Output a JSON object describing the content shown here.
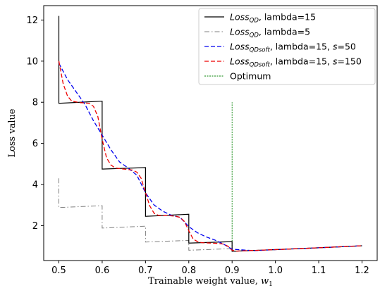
{
  "chart_data": {
    "type": "line",
    "xlabel_main": "Trainable weight value, ",
    "xlabel_var": "w",
    "xlabel_sub": "1",
    "ylabel": "Loss value",
    "xlim": [
      0.465,
      1.235
    ],
    "ylim": [
      0.3,
      12.7
    ],
    "xticks": [
      "0.5",
      "0.6",
      "0.7",
      "0.8",
      "0.9",
      "1.0",
      "1.1",
      "1.2"
    ],
    "xtick_values": [
      0.5,
      0.6,
      0.7,
      0.8,
      0.9,
      1.0,
      1.1,
      1.2
    ],
    "yticks": [
      "2",
      "4",
      "6",
      "8",
      "10",
      "12"
    ],
    "ytick_values": [
      2,
      4,
      6,
      8,
      10,
      12
    ],
    "legend_position": "top-right",
    "series": [
      {
        "name": "Loss_QD, lambda=15",
        "legend_base": "Loss",
        "legend_sub": "QD",
        "legend_rest": ", lambda=15",
        "legend_s": "",
        "legend_tail": "",
        "color": "#000000",
        "style": "solid",
        "x": [
          0.5,
          0.5,
          0.6,
          0.6,
          0.7,
          0.7,
          0.8,
          0.8,
          0.9,
          0.9,
          1.0,
          1.1,
          1.2
        ],
        "y": [
          12.2,
          7.95,
          8.05,
          4.75,
          4.82,
          2.45,
          2.55,
          1.15,
          1.22,
          0.75,
          0.83,
          0.92,
          1.02
        ]
      },
      {
        "name": "Loss_QD, lambda=5",
        "legend_base": "Loss",
        "legend_sub": "QD",
        "legend_rest": ", lambda=5",
        "legend_s": "",
        "legend_tail": "",
        "color": "#808080",
        "style": "dashdot",
        "x": [
          0.5,
          0.5,
          0.6,
          0.6,
          0.7,
          0.7,
          0.8,
          0.8,
          0.9,
          0.9,
          1.0,
          1.1,
          1.2
        ],
        "y": [
          4.3,
          2.88,
          2.97,
          1.88,
          1.97,
          1.2,
          1.28,
          0.8,
          0.88,
          0.75,
          0.83,
          0.92,
          1.02
        ]
      },
      {
        "name": "Loss_QDsoft, lambda=15, s=50",
        "legend_base": "Loss",
        "legend_sub": "QDsoft",
        "legend_rest": ", lambda=15, ",
        "legend_s": "s",
        "legend_tail": "=50",
        "color": "#0000ee",
        "style": "dashed",
        "x": [
          0.5,
          0.52,
          0.54,
          0.56,
          0.58,
          0.6,
          0.62,
          0.64,
          0.66,
          0.68,
          0.7,
          0.72,
          0.74,
          0.76,
          0.78,
          0.8,
          0.82,
          0.84,
          0.86,
          0.88,
          0.9,
          0.95,
          1.0,
          1.1,
          1.2
        ],
        "y": [
          9.9,
          9.1,
          8.5,
          7.9,
          7.1,
          6.4,
          5.7,
          5.1,
          4.8,
          4.45,
          3.6,
          3.0,
          2.7,
          2.5,
          2.4,
          1.95,
          1.65,
          1.45,
          1.3,
          1.1,
          0.85,
          0.78,
          0.83,
          0.92,
          1.02
        ]
      },
      {
        "name": "Loss_QDsoft, lambda=15, s=150",
        "legend_base": "Loss",
        "legend_sub": "QDsoft",
        "legend_rest": ", lambda=15, ",
        "legend_s": "s",
        "legend_tail": "=150",
        "color": "#ee0000",
        "style": "dashed",
        "x": [
          0.5,
          0.51,
          0.52,
          0.53,
          0.55,
          0.57,
          0.58,
          0.59,
          0.6,
          0.61,
          0.62,
          0.63,
          0.65,
          0.67,
          0.68,
          0.69,
          0.7,
          0.71,
          0.72,
          0.73,
          0.75,
          0.77,
          0.78,
          0.79,
          0.8,
          0.81,
          0.82,
          0.83,
          0.85,
          0.87,
          0.88,
          0.89,
          0.9,
          0.91,
          1.0,
          1.1,
          1.2
        ],
        "y": [
          10.0,
          8.9,
          8.3,
          8.05,
          7.98,
          7.95,
          7.8,
          7.3,
          6.2,
          5.3,
          4.95,
          4.8,
          4.75,
          4.7,
          4.6,
          4.3,
          3.6,
          2.95,
          2.6,
          2.5,
          2.5,
          2.45,
          2.4,
          2.2,
          1.75,
          1.35,
          1.22,
          1.17,
          1.15,
          1.13,
          1.1,
          1.0,
          0.8,
          0.76,
          0.83,
          0.92,
          1.02
        ]
      },
      {
        "name": "Optimum",
        "legend_base": "Optimum",
        "legend_sub": "",
        "legend_rest": "",
        "legend_s": "",
        "legend_tail": "",
        "color": "#008000",
        "style": "dotted",
        "x": [
          0.9,
          0.9
        ],
        "y": [
          0.75,
          8.0
        ]
      }
    ]
  }
}
